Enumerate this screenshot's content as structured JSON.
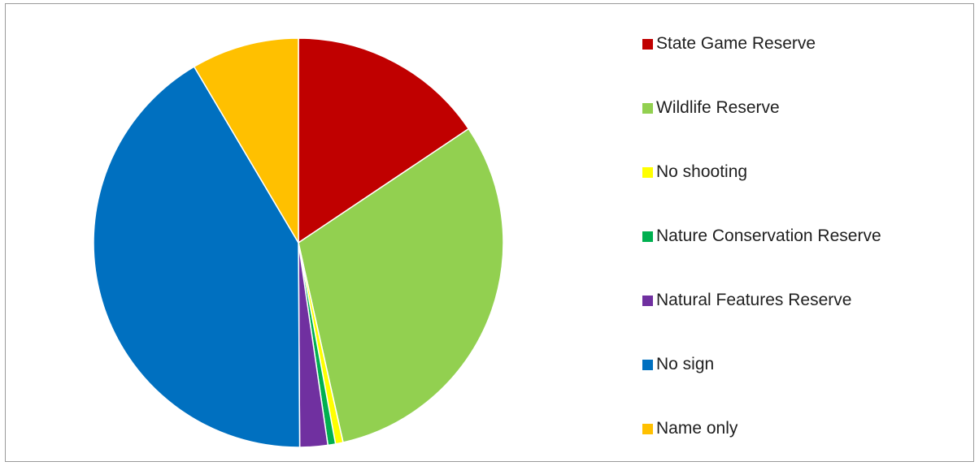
{
  "chart_data": {
    "type": "pie",
    "title": "",
    "categories": [
      "State Game Reserve",
      "Wildlife Reserve",
      "No shooting",
      "Nature Conservation Reserve",
      "Natural Features Reserve",
      "No sign",
      "Name only"
    ],
    "values": [
      15.6,
      30.9,
      0.6,
      0.6,
      2.2,
      41.6,
      8.5
    ],
    "colors": [
      "#C00000",
      "#92D050",
      "#FFFF00",
      "#00B050",
      "#7030A0",
      "#0070C0",
      "#FFC000"
    ],
    "legend_position": "right",
    "start_angle_deg": 0,
    "direction": "clockwise"
  }
}
